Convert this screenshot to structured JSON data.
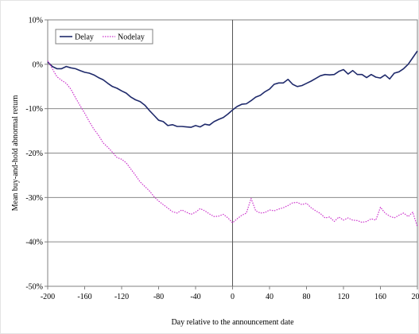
{
  "chart_data": {
    "type": "line",
    "title": "",
    "xlabel": "Day relative to the announcement date",
    "ylabel": "Mean buy-and-hold abnormal return",
    "xlim": [
      -200,
      200
    ],
    "ylim": [
      -50,
      10
    ],
    "x_ticks": [
      -200,
      -160,
      -120,
      -80,
      -40,
      0,
      40,
      80,
      120,
      160,
      200
    ],
    "x_tick_labels": [
      "-200",
      "-160",
      "-120",
      "-80",
      "-40",
      "0",
      "40",
      "80",
      "120",
      "160",
      "200"
    ],
    "y_ticks": [
      10,
      0,
      -10,
      -20,
      -30,
      -40,
      -50
    ],
    "y_tick_labels": [
      "10%",
      "0%",
      "-10%",
      "-20%",
      "-30%",
      "-40%",
      "-50%"
    ],
    "grid": "horizontal",
    "reference_line_x": 0,
    "legend_position": "top-left",
    "series": [
      {
        "name": "Delay",
        "color": "#1f2a6b",
        "style": "solid",
        "x": [
          -200,
          -195,
          -190,
          -185,
          -180,
          -175,
          -170,
          -165,
          -160,
          -155,
          -150,
          -145,
          -140,
          -135,
          -130,
          -125,
          -120,
          -115,
          -110,
          -105,
          -100,
          -95,
          -90,
          -85,
          -80,
          -75,
          -70,
          -65,
          -60,
          -55,
          -50,
          -45,
          -40,
          -35,
          -30,
          -25,
          -20,
          -15,
          -10,
          -5,
          0,
          5,
          10,
          15,
          20,
          25,
          30,
          35,
          40,
          45,
          50,
          55,
          60,
          65,
          70,
          75,
          80,
          85,
          90,
          95,
          100,
          105,
          110,
          115,
          120,
          125,
          130,
          135,
          140,
          145,
          150,
          155,
          160,
          165,
          170,
          175,
          180,
          185,
          190,
          195,
          200
        ],
        "values": [
          0.5,
          -0.5,
          -1.0,
          -1.0,
          -0.5,
          -0.8,
          -1.0,
          -1.4,
          -1.8,
          -2.0,
          -2.4,
          -3.0,
          -3.5,
          -4.3,
          -5.0,
          -5.4,
          -6.0,
          -6.5,
          -7.4,
          -8.0,
          -8.4,
          -9.2,
          -10.4,
          -11.5,
          -12.6,
          -12.9,
          -13.8,
          -13.6,
          -14.0,
          -14.0,
          -14.1,
          -14.2,
          -13.8,
          -14.1,
          -13.5,
          -13.7,
          -12.9,
          -12.4,
          -12.0,
          -11.2,
          -10.3,
          -9.5,
          -9.0,
          -8.9,
          -8.2,
          -7.4,
          -7.0,
          -6.2,
          -5.6,
          -4.5,
          -4.2,
          -4.2,
          -3.4,
          -4.5,
          -5.0,
          -4.8,
          -4.3,
          -3.8,
          -3.2,
          -2.6,
          -2.3,
          -2.4,
          -2.3,
          -1.6,
          -1.2,
          -2.2,
          -1.4,
          -2.3,
          -2.3,
          -3.0,
          -2.3,
          -2.9,
          -3.1,
          -2.4,
          -3.3,
          -2.0,
          -1.7,
          -1.0,
          0.0,
          1.5,
          3.0
        ]
      },
      {
        "name": "Nodelay",
        "color": "#cc33cc",
        "style": "dotted",
        "x": [
          -200,
          -195,
          -190,
          -185,
          -180,
          -175,
          -170,
          -165,
          -160,
          -155,
          -150,
          -145,
          -140,
          -135,
          -130,
          -125,
          -120,
          -115,
          -110,
          -105,
          -100,
          -95,
          -90,
          -85,
          -80,
          -75,
          -70,
          -65,
          -60,
          -55,
          -50,
          -45,
          -40,
          -35,
          -30,
          -25,
          -20,
          -15,
          -10,
          -5,
          0,
          5,
          10,
          15,
          20,
          25,
          30,
          35,
          40,
          45,
          50,
          55,
          60,
          65,
          70,
          75,
          80,
          85,
          90,
          95,
          100,
          105,
          110,
          115,
          120,
          125,
          130,
          135,
          140,
          145,
          150,
          155,
          160,
          165,
          170,
          175,
          180,
          185,
          190,
          195,
          200
        ],
        "values": [
          0.8,
          -1.0,
          -2.8,
          -3.6,
          -4.3,
          -5.6,
          -7.5,
          -9.3,
          -11.0,
          -12.9,
          -14.6,
          -16.0,
          -17.7,
          -18.7,
          -19.8,
          -21.0,
          -21.4,
          -22.2,
          -23.6,
          -25.0,
          -26.5,
          -27.5,
          -28.5,
          -29.8,
          -30.8,
          -31.6,
          -32.4,
          -33.2,
          -33.5,
          -32.8,
          -33.3,
          -33.8,
          -33.3,
          -32.5,
          -33.0,
          -33.7,
          -34.3,
          -34.2,
          -33.8,
          -34.6,
          -35.7,
          -34.8,
          -34.0,
          -33.5,
          -30.2,
          -33.0,
          -33.5,
          -33.4,
          -32.8,
          -33.0,
          -32.6,
          -32.3,
          -31.8,
          -31.2,
          -31.1,
          -31.6,
          -31.3,
          -32.3,
          -33.0,
          -33.6,
          -34.6,
          -34.4,
          -35.4,
          -34.4,
          -35.1,
          -34.6,
          -35.1,
          -35.2,
          -35.6,
          -35.4,
          -34.8,
          -35.1,
          -32.2,
          -33.5,
          -34.2,
          -34.6,
          -34.0,
          -33.5,
          -34.3,
          -33.3,
          -36.6
        ]
      }
    ]
  }
}
